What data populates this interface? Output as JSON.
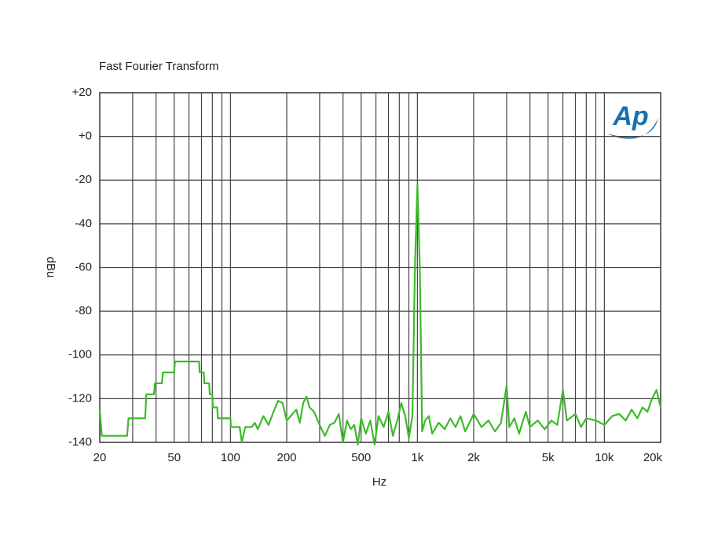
{
  "chart_data": {
    "type": "line",
    "title": "Fast Fourier Transform",
    "x_label": "Hz",
    "y_label": "dBu",
    "logo_text": "Ap",
    "xscale": "log",
    "grid": true,
    "color": "#3dba2a",
    "xlim": [
      20,
      20000
    ],
    "ylim": [
      -140,
      20
    ],
    "xticks": [
      20,
      50,
      100,
      200,
      500,
      {
        "value": 1000,
        "label": "1k"
      },
      {
        "value": 2000,
        "label": "2k"
      },
      {
        "value": 5000,
        "label": "5k"
      },
      {
        "value": 10000,
        "label": "10k"
      },
      {
        "value": 20000,
        "label": "20k"
      }
    ],
    "xminor": [
      30,
      40,
      60,
      70,
      80,
      90,
      300,
      400,
      600,
      700,
      800,
      900,
      3000,
      4000,
      6000,
      7000,
      8000,
      9000
    ],
    "yticks": [
      {
        "value": 20,
        "label": "+20"
      },
      {
        "value": 0,
        "label": "+0"
      },
      -20,
      -40,
      -60,
      -80,
      -100,
      -120,
      -140
    ],
    "x": [
      20,
      20.5,
      28,
      28.5,
      35,
      35.5,
      39,
      39.5,
      43,
      43.5,
      50,
      50.5,
      68,
      68.5,
      72,
      72.5,
      77,
      77.5,
      80,
      80.5,
      85,
      85.5,
      100,
      100.5,
      112,
      115,
      120,
      130,
      135,
      140,
      150,
      160,
      170,
      180,
      190,
      200,
      210,
      225,
      235,
      245,
      255,
      265,
      280,
      300,
      320,
      340,
      360,
      380,
      400,
      420,
      440,
      460,
      480,
      500,
      530,
      560,
      590,
      620,
      660,
      700,
      740,
      780,
      820,
      860,
      900,
      940,
      970,
      1000,
      1030,
      1060,
      1100,
      1150,
      1200,
      1300,
      1400,
      1500,
      1600,
      1700,
      1800,
      1900,
      2000,
      2200,
      2400,
      2600,
      2800,
      3000,
      3100,
      3300,
      3500,
      3800,
      4000,
      4400,
      4800,
      5200,
      5600,
      6000,
      6300,
      7000,
      7500,
      8000,
      9000,
      10000,
      11000,
      12000,
      13000,
      14000,
      15000,
      16000,
      17000,
      18000,
      19000,
      20000
    ],
    "values": [
      -125,
      -137,
      -137,
      -129,
      -129,
      -118,
      -118,
      -113,
      -113,
      -108,
      -108,
      -103,
      -103,
      -108,
      -108,
      -113,
      -113,
      -118,
      -118,
      -124,
      -124,
      -129,
      -129,
      -133,
      -133,
      -140,
      -133,
      -133,
      -131,
      -134,
      -128,
      -132,
      -126,
      -121,
      -122,
      -130,
      -128,
      -125,
      -131,
      -122,
      -119,
      -124,
      -126,
      -132,
      -137,
      -132,
      -131,
      -127,
      -140,
      -130,
      -134,
      -132,
      -141,
      -129,
      -136,
      -130,
      -141,
      -128,
      -133,
      -126,
      -137,
      -130,
      -122,
      -128,
      -138,
      -128,
      -60,
      -22,
      -60,
      -135,
      -130,
      -128,
      -136,
      -131,
      -134,
      -129,
      -133,
      -128,
      -135,
      -131,
      -127,
      -133,
      -130,
      -135,
      -131,
      -114,
      -133,
      -129,
      -136,
      -126,
      -133,
      -130,
      -134,
      -130,
      -132,
      -116,
      -130,
      -127,
      -133,
      -129,
      -130,
      -132,
      -128,
      -127,
      -130,
      -125,
      -129,
      -124,
      -126,
      -120,
      -116,
      -124
    ]
  }
}
